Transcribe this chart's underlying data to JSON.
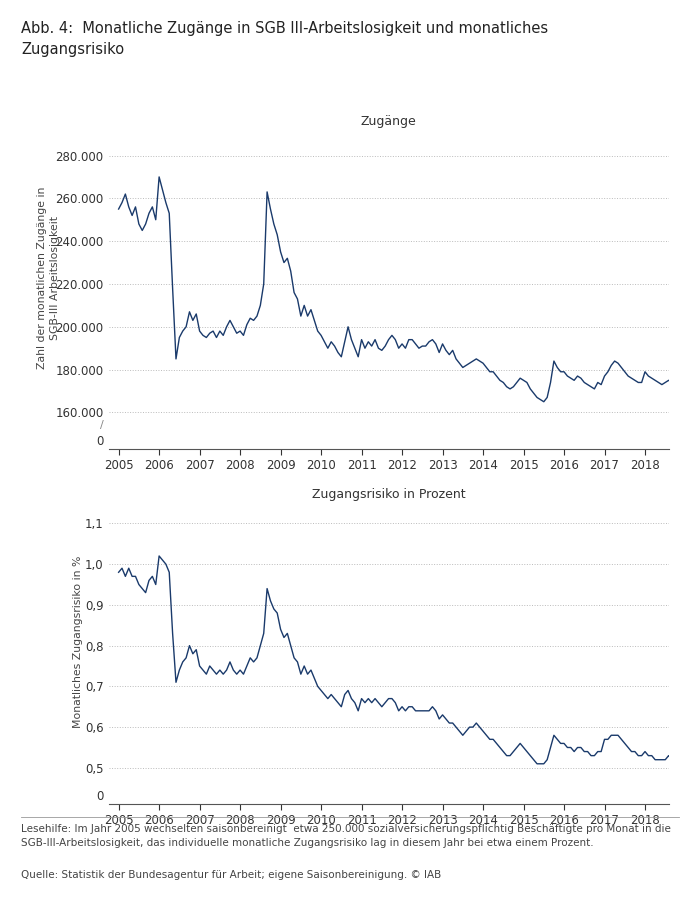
{
  "title": "Abb. 4:  Monatliche Zugänge in SGB III-Arbeitslosigkeit und monatliches\nZugangsrisiko",
  "plot1_title": "Zugänge",
  "plot2_title": "Zugangsrisiko in Prozent",
  "ylabel1": "Zahl der monatlichen Zugänge in\nSGB-III Arbeitslosigkeit",
  "ylabel2": "Monatliches Zugangsrisiko in %",
  "footnote1": "Lesehilfe: Im Jahr 2005 wechselten saisonbereinigt  etwa 250.000 sozialversicherungspflichtig Beschäftigte pro Monat in die\nSGB-III-Arbeitslosigkeit, das individuelle monatliche Zugangsrisiko lag in diesem Jahr bei etwa einem Prozent.",
  "footnote2": "Quelle: Statistik der Bundesagentur für Arbeit; eigene Saisonbereinigung. © IAB",
  "line_color": "#1a3a6b",
  "background_color": "#ffffff",
  "grid_color": "#bbbbbb",
  "plot1_yticks": [
    160000,
    180000,
    200000,
    220000,
    240000,
    260000,
    280000
  ],
  "plot2_yticks": [
    0.5,
    0.6,
    0.7,
    0.8,
    0.9,
    1.0,
    1.1
  ],
  "xstart": 2004.75,
  "xend": 2018.58,
  "xticks": [
    2005,
    2006,
    2007,
    2008,
    2009,
    2010,
    2011,
    2012,
    2013,
    2014,
    2015,
    2016,
    2017,
    2018
  ],
  "zugang_data": [
    255000,
    258000,
    262000,
    256000,
    252000,
    256000,
    248000,
    245000,
    248000,
    253000,
    256000,
    250000,
    270000,
    264000,
    258000,
    253000,
    218000,
    185000,
    195000,
    198000,
    200000,
    207000,
    203000,
    206000,
    198000,
    196000,
    195000,
    197000,
    198000,
    195000,
    198000,
    196000,
    200000,
    203000,
    200000,
    197000,
    198000,
    196000,
    201000,
    204000,
    203000,
    205000,
    210000,
    220000,
    263000,
    255000,
    248000,
    243000,
    235000,
    230000,
    232000,
    226000,
    216000,
    213000,
    205000,
    210000,
    205000,
    208000,
    203000,
    198000,
    196000,
    193000,
    190000,
    193000,
    191000,
    188000,
    186000,
    193000,
    200000,
    194000,
    190000,
    186000,
    194000,
    190000,
    193000,
    191000,
    194000,
    190000,
    189000,
    191000,
    194000,
    196000,
    194000,
    190000,
    192000,
    190000,
    194000,
    194000,
    192000,
    190000,
    191000,
    191000,
    193000,
    194000,
    192000,
    188000,
    192000,
    189000,
    187000,
    189000,
    185000,
    183000,
    181000,
    182000,
    183000,
    184000,
    185000,
    184000,
    183000,
    181000,
    179000,
    179000,
    177000,
    175000,
    174000,
    172000,
    171000,
    172000,
    174000,
    176000,
    175000,
    174000,
    171000,
    169000,
    167000,
    166000,
    165000,
    167000,
    174000,
    184000,
    181000,
    179000,
    179000,
    177000,
    176000,
    175000,
    177000,
    176000,
    174000,
    173000,
    172000,
    171000,
    174000,
    173000,
    177000,
    179000,
    182000,
    184000,
    183000,
    181000,
    179000,
    177000,
    176000,
    175000,
    174000,
    174000,
    179000,
    177000,
    176000,
    175000,
    174000,
    173000,
    174000,
    175000,
    174000,
    173000,
    172000,
    171000,
    174000,
    172000
  ],
  "risiko_data": [
    0.98,
    0.99,
    0.97,
    0.99,
    0.97,
    0.97,
    0.95,
    0.94,
    0.93,
    0.96,
    0.97,
    0.95,
    1.02,
    1.01,
    1.0,
    0.98,
    0.83,
    0.71,
    0.74,
    0.76,
    0.77,
    0.8,
    0.78,
    0.79,
    0.75,
    0.74,
    0.73,
    0.75,
    0.74,
    0.73,
    0.74,
    0.73,
    0.74,
    0.76,
    0.74,
    0.73,
    0.74,
    0.73,
    0.75,
    0.77,
    0.76,
    0.77,
    0.8,
    0.83,
    0.94,
    0.91,
    0.89,
    0.88,
    0.84,
    0.82,
    0.83,
    0.8,
    0.77,
    0.76,
    0.73,
    0.75,
    0.73,
    0.74,
    0.72,
    0.7,
    0.69,
    0.68,
    0.67,
    0.68,
    0.67,
    0.66,
    0.65,
    0.68,
    0.69,
    0.67,
    0.66,
    0.64,
    0.67,
    0.66,
    0.67,
    0.66,
    0.67,
    0.66,
    0.65,
    0.66,
    0.67,
    0.67,
    0.66,
    0.64,
    0.65,
    0.64,
    0.65,
    0.65,
    0.64,
    0.64,
    0.64,
    0.64,
    0.64,
    0.65,
    0.64,
    0.62,
    0.63,
    0.62,
    0.61,
    0.61,
    0.6,
    0.59,
    0.58,
    0.59,
    0.6,
    0.6,
    0.61,
    0.6,
    0.59,
    0.58,
    0.57,
    0.57,
    0.56,
    0.55,
    0.54,
    0.53,
    0.53,
    0.54,
    0.55,
    0.56,
    0.55,
    0.54,
    0.53,
    0.52,
    0.51,
    0.51,
    0.51,
    0.52,
    0.55,
    0.58,
    0.57,
    0.56,
    0.56,
    0.55,
    0.55,
    0.54,
    0.55,
    0.55,
    0.54,
    0.54,
    0.53,
    0.53,
    0.54,
    0.54,
    0.57,
    0.57,
    0.58,
    0.58,
    0.58,
    0.57,
    0.56,
    0.55,
    0.54,
    0.54,
    0.53,
    0.53,
    0.54,
    0.53,
    0.53,
    0.52,
    0.52,
    0.52,
    0.52,
    0.53,
    0.52,
    0.51,
    0.51,
    0.5,
    0.52,
    0.51
  ]
}
